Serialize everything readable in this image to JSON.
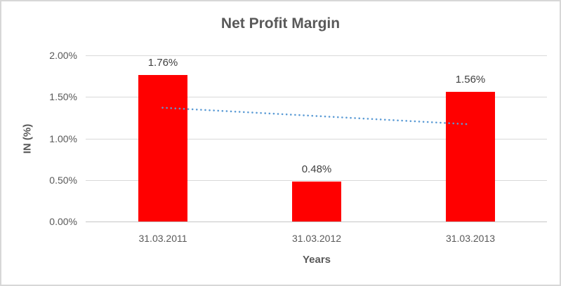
{
  "chart_data": {
    "type": "bar",
    "title": "Net Profit Margin",
    "categories": [
      "31.03.2011",
      "31.03.2012",
      "31.03.2013"
    ],
    "values": [
      1.76,
      0.48,
      1.56
    ],
    "value_labels": [
      "1.76%",
      "0.48%",
      "1.56%"
    ],
    "xlabel": "Years",
    "ylabel": "IN (%)",
    "ylim": [
      0,
      2
    ],
    "ytick_step": 0.5,
    "yticks": [
      0,
      0.5,
      1.0,
      1.5,
      2.0
    ],
    "ytick_labels": [
      "0.00%",
      "0.50%",
      "1.00%",
      "1.50%",
      "2.00%"
    ],
    "grid": true,
    "legend": "none",
    "bar_color": "#ff0000",
    "text_color": "#595959",
    "gridline_color": "#d9d9d9",
    "trendline": {
      "type": "linear",
      "style": "dotted",
      "color": "#5b9bd5",
      "start_value": 1.37,
      "end_value": 1.17
    }
  }
}
